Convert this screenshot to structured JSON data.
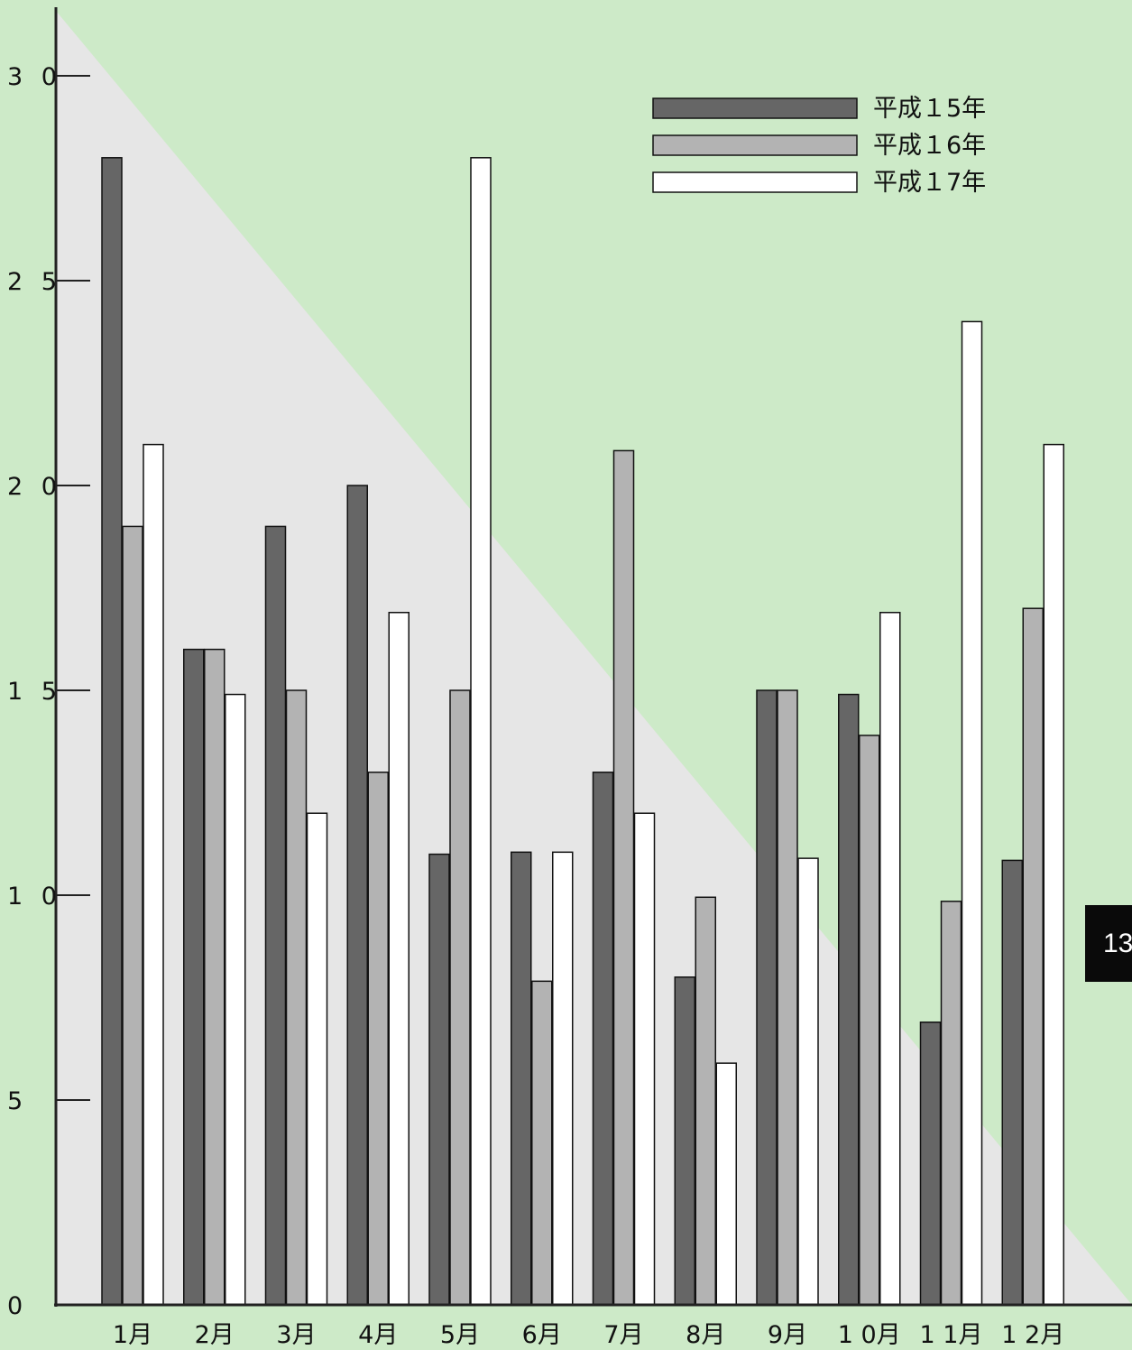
{
  "chart_data": {
    "type": "bar",
    "categories": [
      "1月",
      "2月",
      "3月",
      "4月",
      "5月",
      "6月",
      "7月",
      "8月",
      "9月",
      "1 0月",
      "1 1月",
      "1 2月"
    ],
    "series": [
      {
        "name": "平成１5年",
        "color": "#666666",
        "values": [
          28,
          16,
          19,
          20,
          11,
          11.05,
          13,
          8,
          15,
          14.9,
          6.9,
          10.85
        ]
      },
      {
        "name": "平成１6年",
        "color": "#b3b3b3",
        "values": [
          19,
          16,
          15,
          13,
          15,
          7.9,
          20.85,
          9.95,
          15,
          13.9,
          9.85,
          17
        ]
      },
      {
        "name": "平成１7年",
        "color": "#ffffff",
        "values": [
          21,
          14.9,
          12,
          16.9,
          28,
          11.05,
          12,
          5.9,
          10.9,
          16.9,
          24,
          21
        ]
      }
    ],
    "yticks": [
      "0",
      "5",
      "1 0",
      "1 5",
      "2 0",
      "2 5",
      "3 0"
    ],
    "ylim": [
      0,
      30
    ],
    "legend_position": "top-right",
    "grid": false
  },
  "page_number": "13"
}
